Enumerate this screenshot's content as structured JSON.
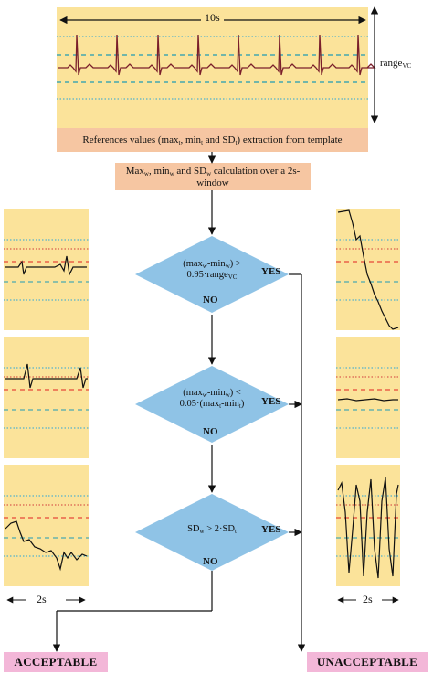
{
  "colors": {
    "panel": "#fbe39a",
    "orange_box": "#f6c6a2",
    "diamond": "#8fc3e6",
    "terminal": "#f3b7d8",
    "signal": "#7a1f2b",
    "dot_blue": "#2aa6d8",
    "dash_teal": "#1f9bb5",
    "dot_red": "#d23a3a",
    "dash_red": "#e02020"
  },
  "top": {
    "duration_label": "10s",
    "range_label": "range",
    "range_sub": "VC",
    "reference_text": "References values (max",
    "reference_parts": [
      "References values (max",
      "t",
      ", min",
      "t",
      " and SD",
      "t",
      ") extraction from template"
    ]
  },
  "calc": {
    "parts": [
      "Max",
      "w",
      ", min",
      "w",
      " and SD",
      "w",
      " calculation over a 2s-window"
    ]
  },
  "decisions": [
    {
      "line1": "(max",
      "line1_sub1": "w",
      "line1_mid": "-min",
      "line1_sub2": "w",
      "line1_end": ") >",
      "line2": "0.95·range",
      "line2_sub": "VC",
      "yes": "YES",
      "no": "NO"
    },
    {
      "line1": "(max",
      "line1_sub1": "w",
      "line1_mid": "-min",
      "line1_sub2": "w",
      "line1_end": ") <",
      "line2": "0.05·(max",
      "line2_sub": "t",
      "line2_mid": "-min",
      "line2_sub2": "t",
      "line2_end": ")",
      "yes": "YES",
      "no": "NO"
    },
    {
      "line1": "SD",
      "line1_sub1": "w",
      "line1_mid": " > 2·SD",
      "line1_sub2": "t",
      "yes": "YES",
      "no": "NO"
    }
  ],
  "window_labels": {
    "left": "2s",
    "right": "2s"
  },
  "terminals": {
    "acceptable": "ACCEPTABLE",
    "unacceptable": "UNACCEPTABLE"
  }
}
